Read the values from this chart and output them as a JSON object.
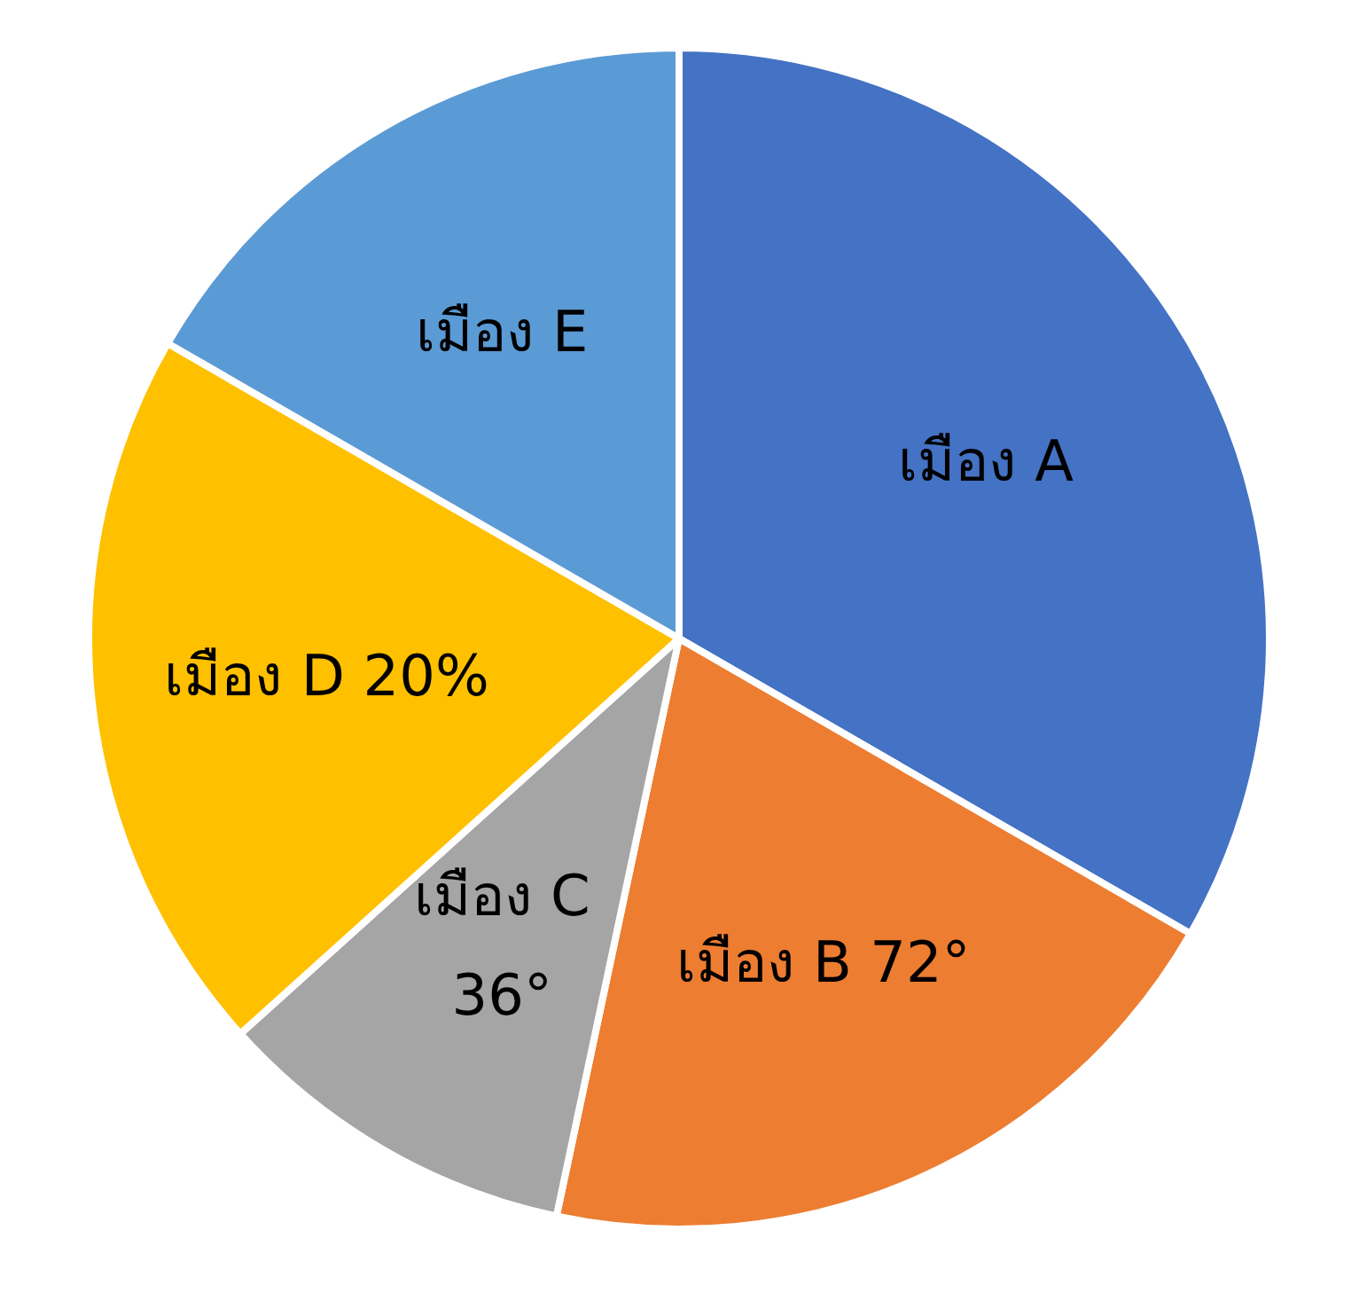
{
  "chart_data": {
    "type": "pie",
    "categories": [
      "เมือง A",
      "เมือง B 72°",
      "เมือง C 36°",
      "เมือง D 20%",
      "เมือง E"
    ],
    "values": [
      33.33,
      20,
      10,
      20,
      16.67
    ],
    "colors": [
      "#4472c4",
      "#ed7d31",
      "#a5a5a5",
      "#ffc000",
      "#5b9bd5"
    ]
  }
}
